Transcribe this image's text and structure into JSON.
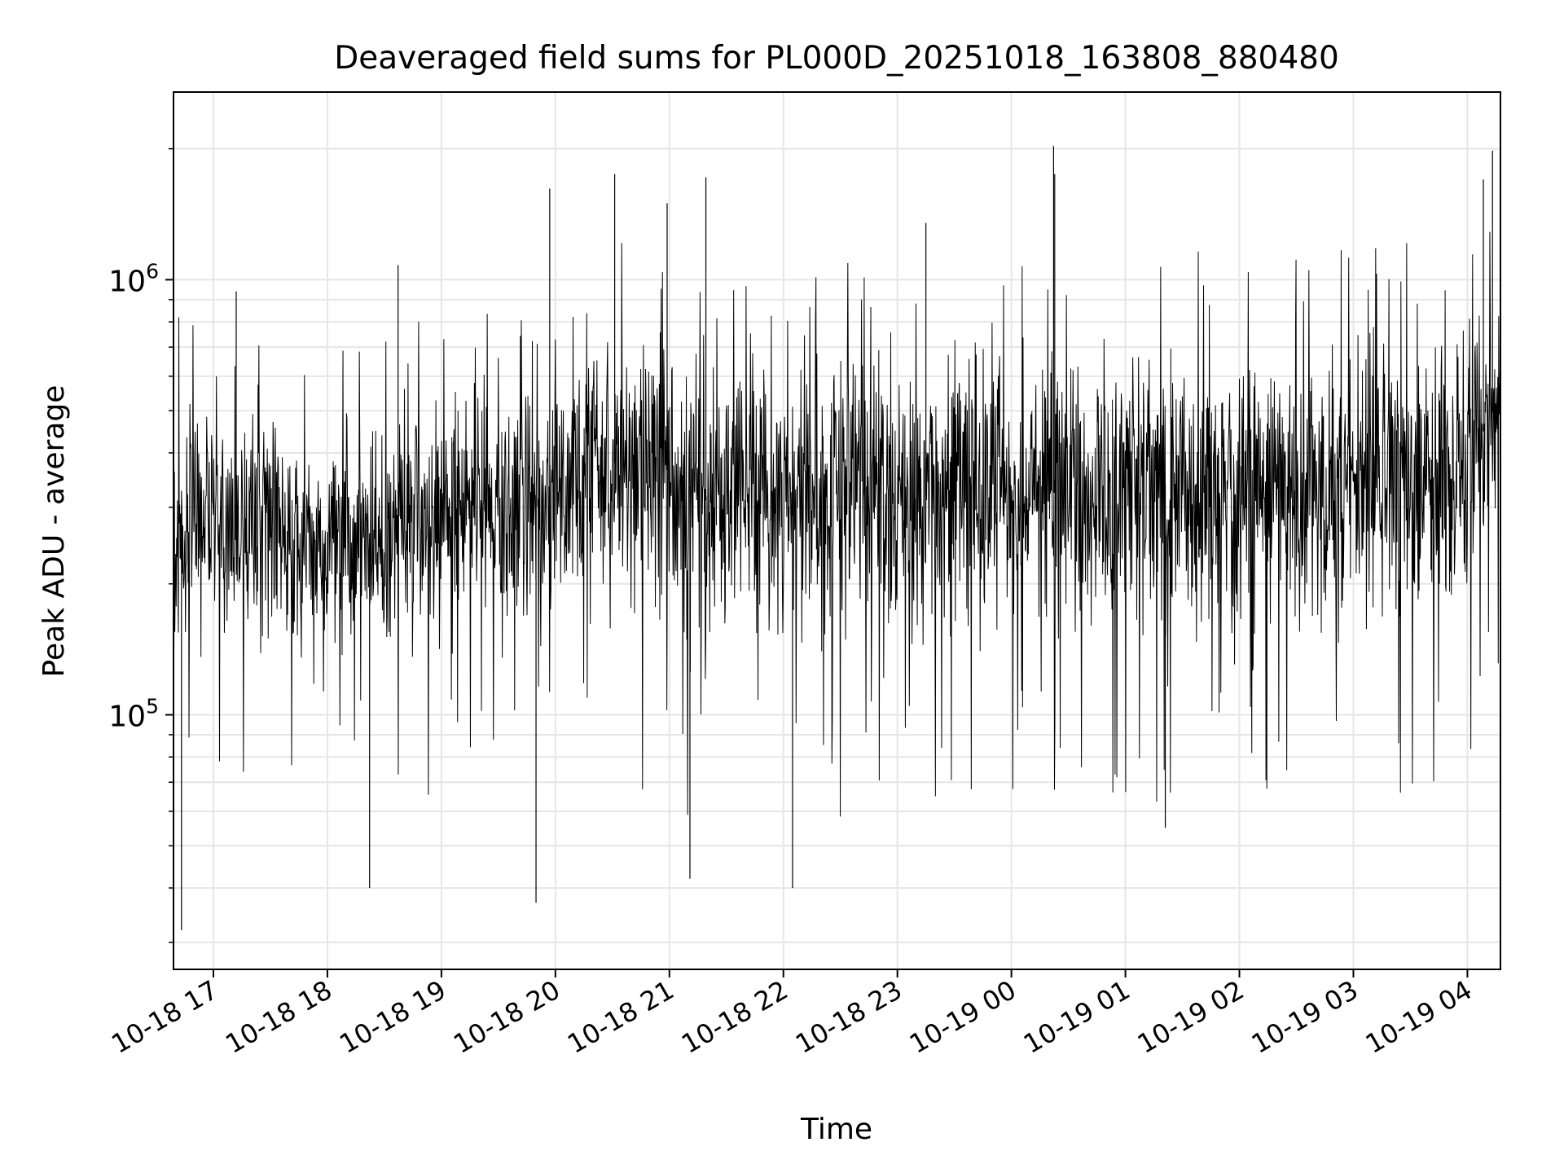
{
  "chart_data": {
    "type": "line",
    "title": "Deaveraged field sums for PL000D_20251018_163808_880480",
    "xlabel": "Time",
    "ylabel": "Peak ADU - average",
    "yscale": "log",
    "ylim": [
      26000,
      2700000
    ],
    "xlim_hours": [
      -0.35,
      11.29
    ],
    "grid": true,
    "line_color": "#000000",
    "xticks": [
      {
        "hour": 0,
        "label": "10-18 17"
      },
      {
        "hour": 1,
        "label": "10-18 18"
      },
      {
        "hour": 2,
        "label": "10-18 19"
      },
      {
        "hour": 3,
        "label": "10-18 20"
      },
      {
        "hour": 4,
        "label": "10-18 21"
      },
      {
        "hour": 5,
        "label": "10-18 22"
      },
      {
        "hour": 6,
        "label": "10-18 23"
      },
      {
        "hour": 7,
        "label": "10-19 00"
      },
      {
        "hour": 8,
        "label": "10-19 01"
      },
      {
        "hour": 9,
        "label": "10-19 02"
      },
      {
        "hour": 10,
        "label": "10-19 03"
      },
      {
        "hour": 11,
        "label": "10-19 04"
      }
    ],
    "yticks": [
      {
        "value": 100000,
        "base": "10",
        "exp": "5"
      },
      {
        "value": 1000000,
        "base": "10",
        "exp": "6"
      }
    ],
    "envelope": {
      "hours": [
        -0.35,
        0.0,
        0.5,
        1.0,
        1.5,
        2.0,
        2.5,
        3.0,
        3.5,
        4.0,
        4.35,
        4.5,
        5.0,
        5.5,
        6.0,
        6.5,
        7.0,
        7.5,
        8.0,
        8.5,
        9.0,
        9.5,
        10.0,
        10.5,
        11.0,
        11.29
      ],
      "typical_high": [
        600000,
        600000,
        520000,
        480000,
        540000,
        620000,
        650000,
        700000,
        900000,
        950000,
        850000,
        700000,
        800000,
        780000,
        750000,
        760000,
        770000,
        780000,
        800000,
        820000,
        830000,
        850000,
        870000,
        880000,
        900000,
        950000
      ],
      "typical_low": [
        120000,
        130000,
        130000,
        130000,
        130000,
        140000,
        150000,
        150000,
        160000,
        140000,
        110000,
        150000,
        130000,
        130000,
        130000,
        140000,
        150000,
        130000,
        140000,
        140000,
        120000,
        130000,
        130000,
        140000,
        140000,
        300000
      ]
    },
    "notable_points": [
      {
        "hour": -0.28,
        "value": 32000
      },
      {
        "hour": 0.2,
        "value": 940000
      },
      {
        "hour": 1.62,
        "value": 1080000
      },
      {
        "hour": 1.37,
        "value": 40000
      },
      {
        "hour": 2.83,
        "value": 37000
      },
      {
        "hour": 2.95,
        "value": 1620000
      },
      {
        "hour": 3.52,
        "value": 1750000
      },
      {
        "hour": 3.98,
        "value": 1500000
      },
      {
        "hour": 4.32,
        "value": 1720000
      },
      {
        "hour": 4.18,
        "value": 42000
      },
      {
        "hour": 5.08,
        "value": 40000
      },
      {
        "hour": 6.25,
        "value": 1350000
      },
      {
        "hour": 7.37,
        "value": 2030000
      },
      {
        "hour": 7.38,
        "value": 1750000
      },
      {
        "hour": 8.35,
        "value": 55000
      },
      {
        "hour": 11.14,
        "value": 1700000
      },
      {
        "hour": 11.22,
        "value": 1980000
      }
    ],
    "sample_count": 3000
  }
}
